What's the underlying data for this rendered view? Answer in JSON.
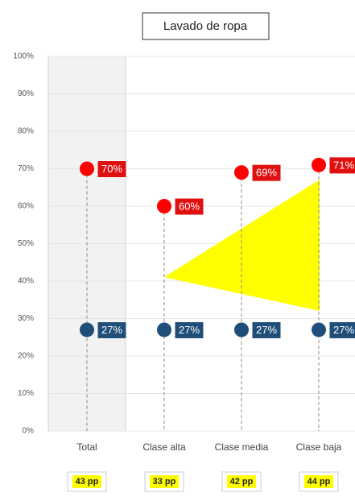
{
  "chart_data": {
    "type": "dot",
    "title": "Lavado de ropa",
    "categories": [
      "Total",
      "Clase alta",
      "Clase media",
      "Clase baja"
    ],
    "series": [
      {
        "color": "#ff0000",
        "label_color": "#e01010",
        "values": [
          70,
          60,
          69,
          71
        ],
        "value_labels": [
          "70%",
          "60%",
          "69%",
          "71%"
        ]
      },
      {
        "color": "#1f4e79",
        "label_color": "#1f4e79",
        "values": [
          27,
          27,
          27,
          27
        ],
        "value_labels": [
          "27%",
          "27%",
          "27%",
          "27%"
        ]
      }
    ],
    "gap_labels": [
      "43 pp",
      "33 pp",
      "42 pp",
      "44 pp"
    ],
    "ylim": [
      0,
      100
    ],
    "yticks": [
      {
        "value": 0,
        "label": "0%"
      },
      {
        "value": 10,
        "label": "10%"
      },
      {
        "value": 20,
        "label": "20%"
      },
      {
        "value": 30,
        "label": "30%"
      },
      {
        "value": 40,
        "label": "40%"
      },
      {
        "value": 50,
        "label": "50%"
      },
      {
        "value": 60,
        "label": "60%"
      },
      {
        "value": 70,
        "label": "70%"
      },
      {
        "value": 80,
        "label": "80%"
      },
      {
        "value": 90,
        "label": "90%"
      },
      {
        "value": 100,
        "label": "100%"
      }
    ],
    "grid": true
  }
}
